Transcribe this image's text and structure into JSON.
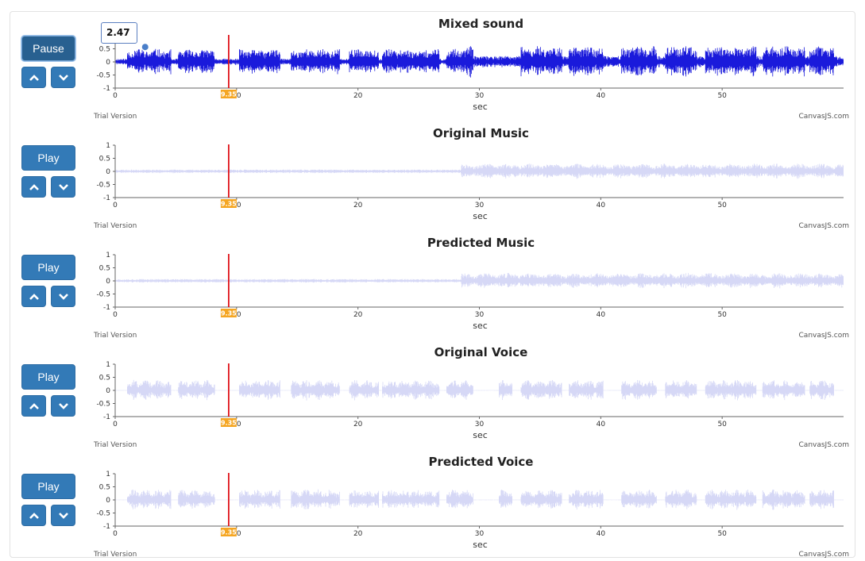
{
  "tooltip": {
    "value": "2.47"
  },
  "chart_data": [
    {
      "type": "line",
      "title": "Mixed sound",
      "button": "Pause",
      "active": true,
      "color": "#1a1adb",
      "strength": 1.0,
      "profile": "mixed",
      "seed": 11,
      "xlabel": "sec",
      "xlim": [
        0,
        60
      ],
      "ylim": [
        -1,
        1
      ],
      "x_ticks": [
        "0",
        "10",
        "20",
        "30",
        "40",
        "50"
      ],
      "y_ticks": [
        "1",
        "0.5",
        "0",
        "-0.5",
        "-1"
      ],
      "playhead": 9.35,
      "playhead_label": "9.35",
      "watermark_left": "Trial Version",
      "watermark_right": "CanvasJS.com"
    },
    {
      "type": "line",
      "title": "Original Music",
      "button": "Play",
      "active": false,
      "color": "#d6d8f6",
      "strength": 1.0,
      "profile": "music",
      "seed": 23,
      "xlabel": "sec",
      "xlim": [
        0,
        60
      ],
      "ylim": [
        -1,
        1
      ],
      "x_ticks": [
        "0",
        "10",
        "20",
        "30",
        "40",
        "50"
      ],
      "y_ticks": [
        "1",
        "0.5",
        "0",
        "-0.5",
        "-1"
      ],
      "playhead": 9.35,
      "playhead_label": "9.35",
      "watermark_left": "Trial Version",
      "watermark_right": "CanvasJS.com"
    },
    {
      "type": "line",
      "title": "Predicted Music",
      "button": "Play",
      "active": false,
      "color": "#d6d8f6",
      "strength": 1.0,
      "profile": "music",
      "seed": 37,
      "xlabel": "sec",
      "xlim": [
        0,
        60
      ],
      "ylim": [
        -1,
        1
      ],
      "x_ticks": [
        "0",
        "10",
        "20",
        "30",
        "40",
        "50"
      ],
      "y_ticks": [
        "1",
        "0.5",
        "0",
        "-0.5",
        "-1"
      ],
      "playhead": 9.35,
      "playhead_label": "9.35",
      "watermark_left": "Trial Version",
      "watermark_right": "CanvasJS.com"
    },
    {
      "type": "line",
      "title": "Original Voice",
      "button": "Play",
      "active": false,
      "color": "#d6d8f6",
      "strength": 1.0,
      "profile": "voice",
      "seed": 51,
      "xlabel": "sec",
      "xlim": [
        0,
        60
      ],
      "ylim": [
        -1,
        1
      ],
      "x_ticks": [
        "0",
        "10",
        "20",
        "30",
        "40",
        "50"
      ],
      "y_ticks": [
        "1",
        "0.5",
        "0",
        "-0.5",
        "-1"
      ],
      "playhead": 9.35,
      "playhead_label": "9.35",
      "watermark_left": "Trial Version",
      "watermark_right": "CanvasJS.com"
    },
    {
      "type": "line",
      "title": "Predicted Voice",
      "button": "Play",
      "active": false,
      "color": "#d6d8f6",
      "strength": 1.0,
      "profile": "voice",
      "seed": 67,
      "xlabel": "sec",
      "xlim": [
        0,
        60
      ],
      "ylim": [
        -1,
        1
      ],
      "x_ticks": [
        "0",
        "10",
        "20",
        "30",
        "40",
        "50"
      ],
      "y_ticks": [
        "1",
        "0.5",
        "0",
        "-0.5",
        "-1"
      ],
      "playhead": 9.35,
      "playhead_label": "9.35",
      "watermark_left": "Trial Version",
      "watermark_right": "CanvasJS.com"
    }
  ]
}
